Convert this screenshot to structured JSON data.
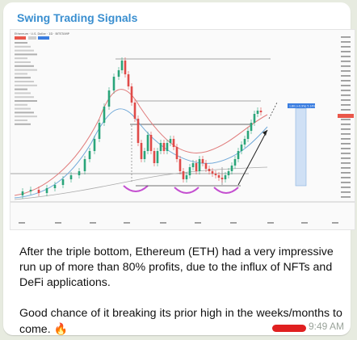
{
  "message": {
    "channel_name": "Swing Trading Signals",
    "paragraphs": [
      "After the triple bottom, Ethereum (ETH) had a very impressive run up of more than 80% profits, due to the influx of NFTs and DeFi applications.",
      "Good chance of it breaking its prior high in the weeks/months to come."
    ],
    "emoji": "🔥",
    "time": "9:49 AM",
    "accent_color": "#3a8fd0"
  },
  "chart": {
    "header_line": "Ethereum · U.S. Dollar · 1D · BITSTAMP",
    "target_badge": "1.80 (+0.9%) 5.14%"
  }
}
